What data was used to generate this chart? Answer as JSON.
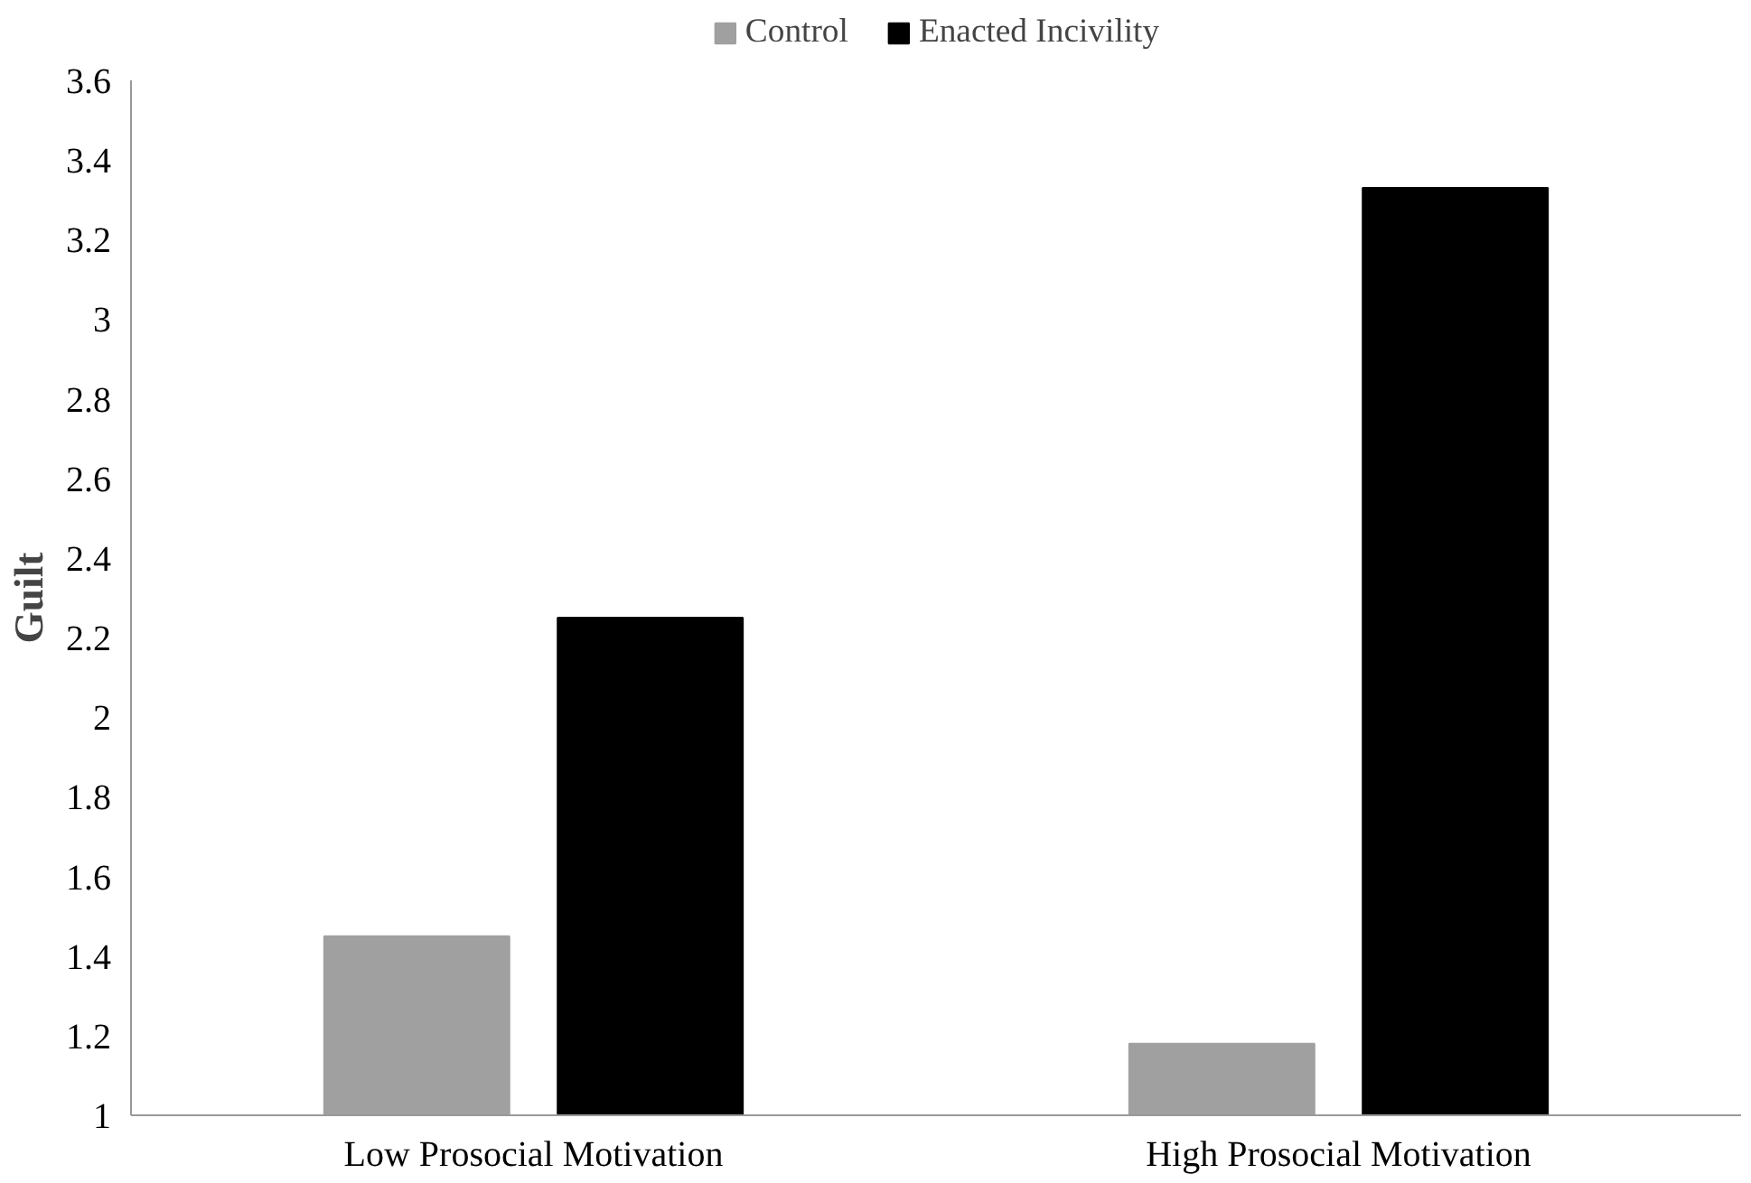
{
  "chart_data": {
    "type": "bar",
    "ylabel": "Guilt",
    "categories": [
      "Low Prosocial Motivation",
      "High Prosocial Motivation"
    ],
    "series": [
      {
        "name": "Control",
        "color": "#a0a0a0",
        "values": [
          1.45,
          1.18
        ]
      },
      {
        "name": "Enacted Incivility",
        "color": "#000000",
        "values": [
          2.25,
          3.33
        ]
      }
    ],
    "ylim": [
      1,
      3.6
    ],
    "yticks": [
      1,
      1.2,
      1.4,
      1.6,
      1.8,
      2,
      2.2,
      2.4,
      2.6,
      2.8,
      3,
      3.2,
      3.4,
      3.6
    ],
    "grid": false,
    "legend": "top"
  }
}
